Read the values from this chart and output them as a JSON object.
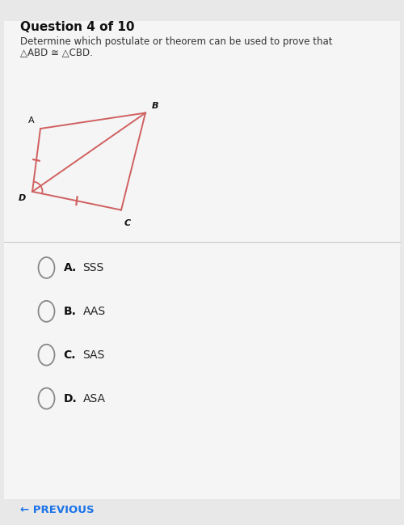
{
  "title": "Question 4 of 10",
  "question_line1": "Determine which postulate or theorem can be used to prove that",
  "question_line2": "△ABD ≅ △CBD.",
  "bg_color": "#e8e8e8",
  "panel_color": "#f5f5f5",
  "figure_color": "#d06060",
  "points": {
    "A": [
      0.1,
      0.755
    ],
    "B": [
      0.36,
      0.785
    ],
    "D": [
      0.08,
      0.635
    ],
    "C": [
      0.3,
      0.6
    ]
  },
  "options": [
    {
      "label": "A.",
      "text": "SSS"
    },
    {
      "label": "B.",
      "text": "AAS"
    },
    {
      "label": "C.",
      "text": "SAS"
    },
    {
      "label": "D.",
      "text": "ASA"
    }
  ],
  "tick_mark_color": "#d06060",
  "previous_text": "← PREVIOUS"
}
